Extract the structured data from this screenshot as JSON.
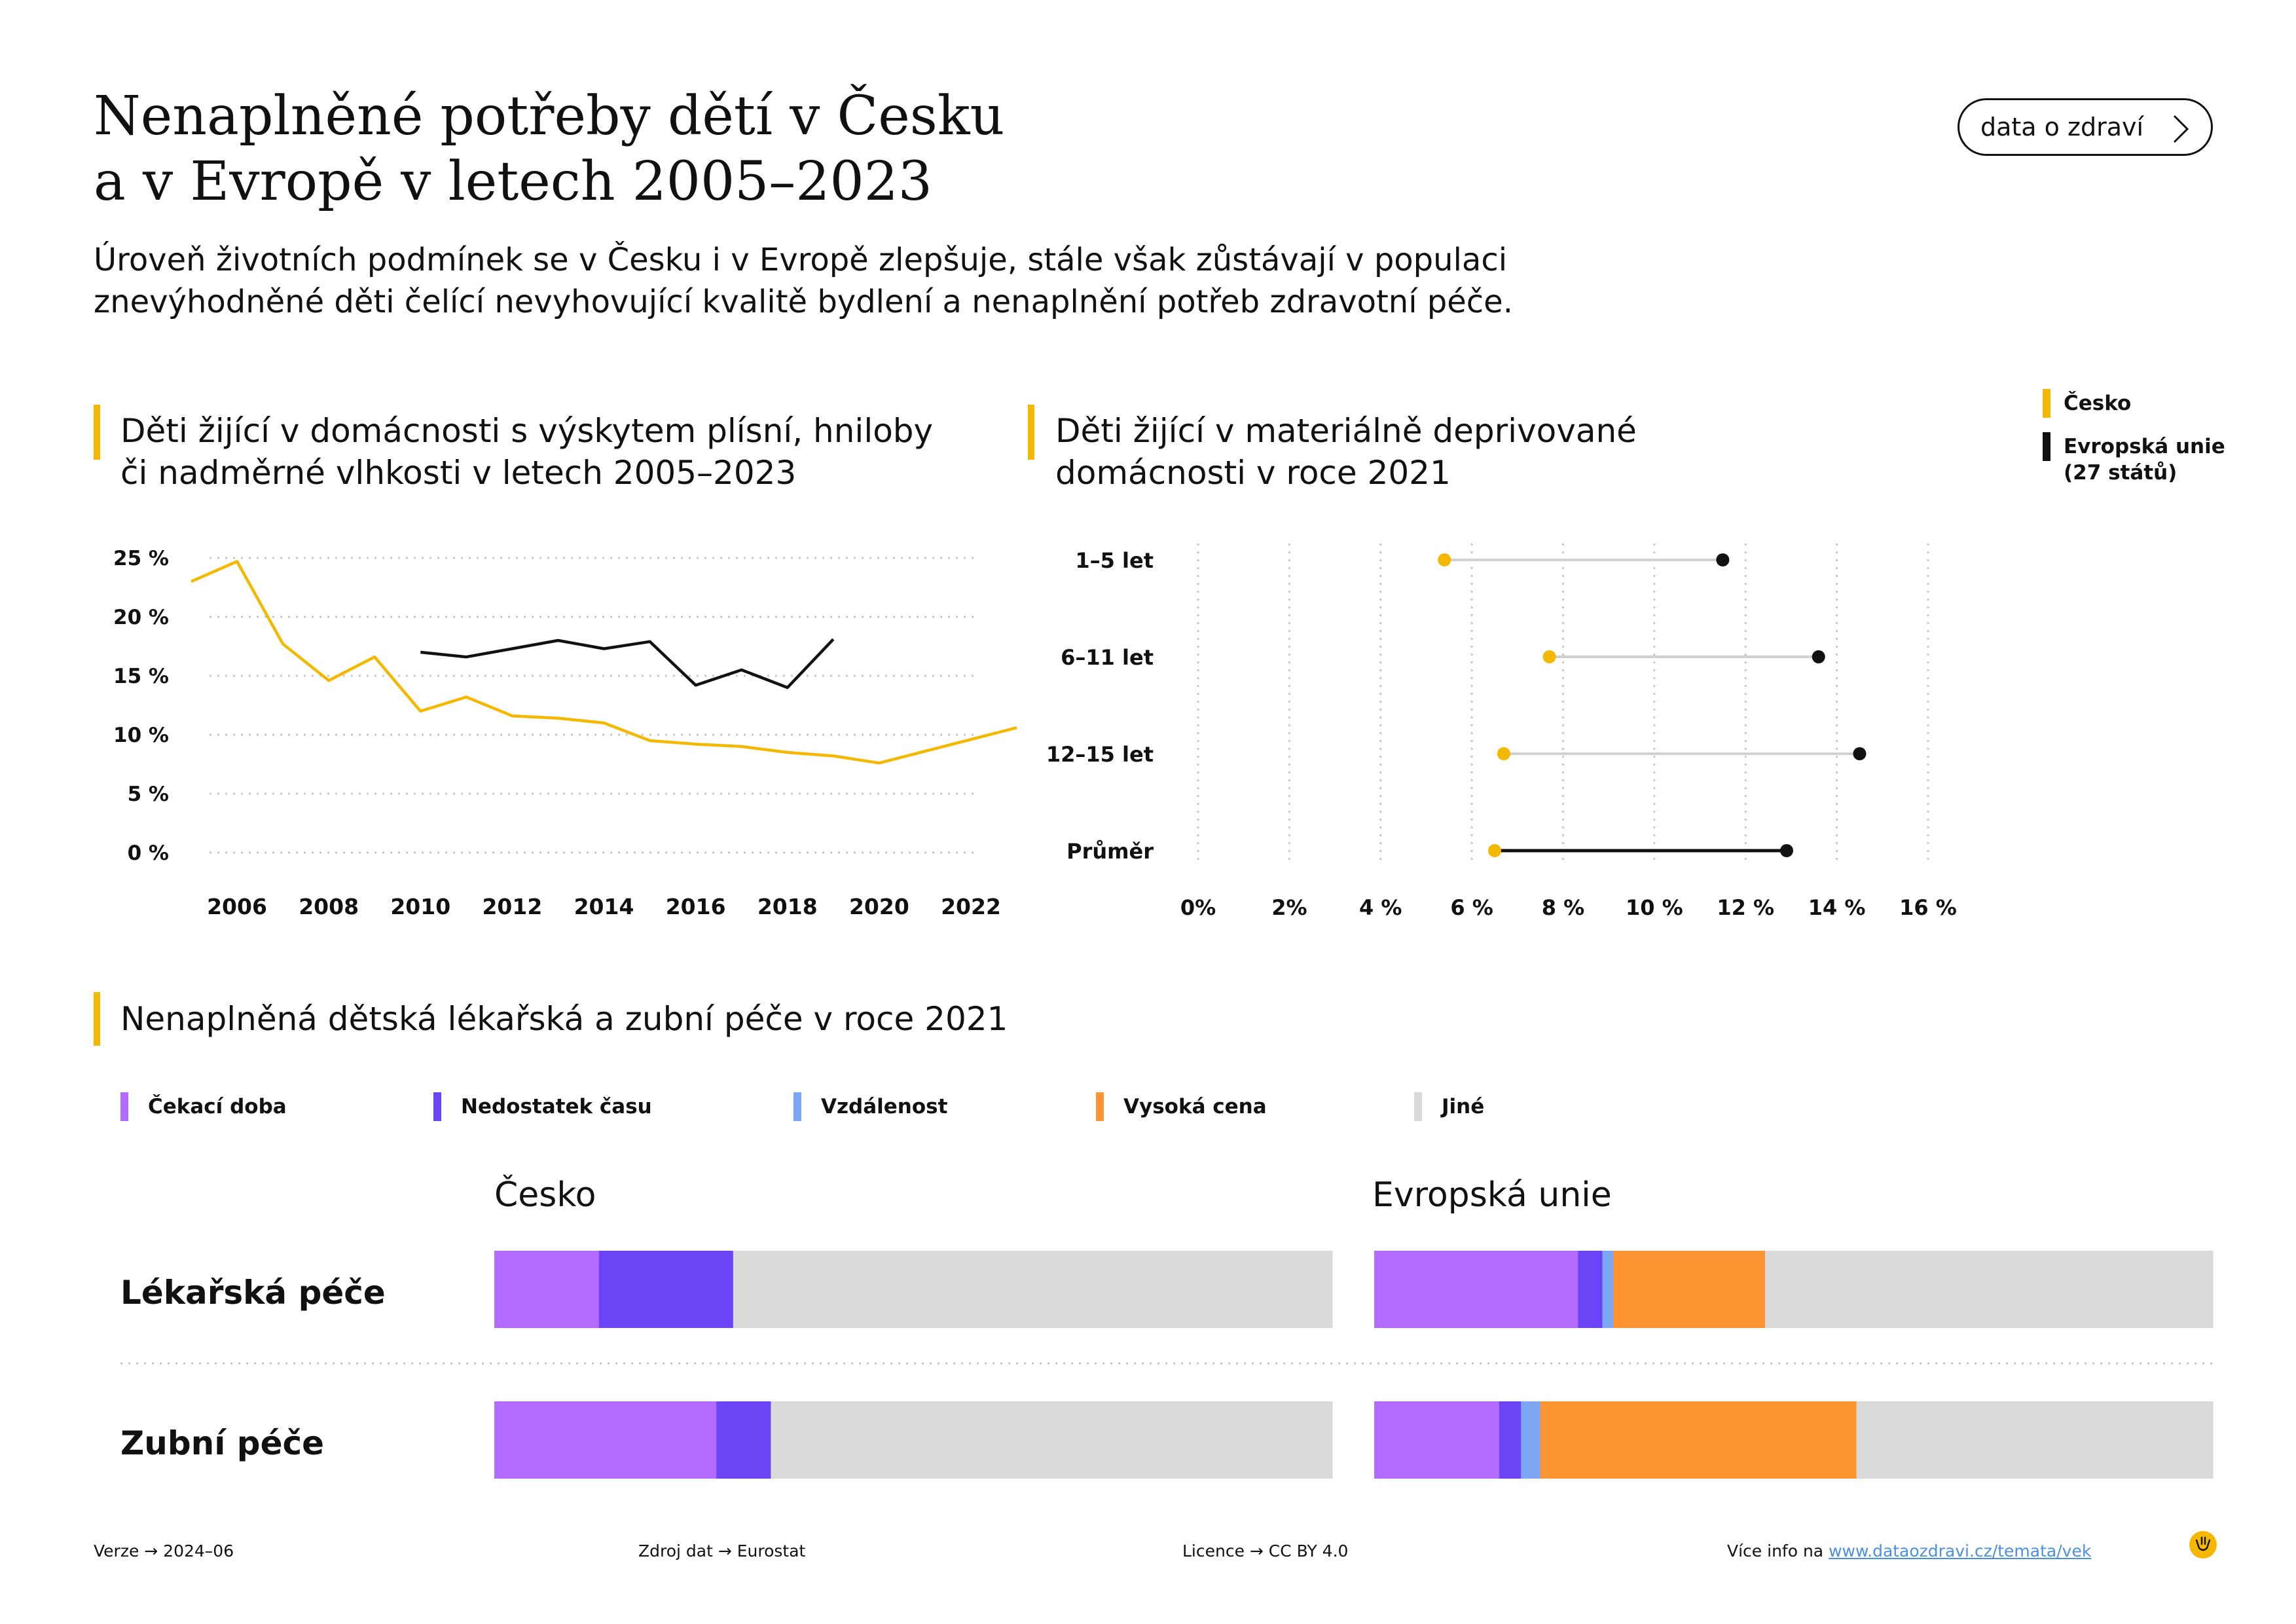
{
  "header": {
    "title_line1": "Nenaplněné potřeby dětí v Česku",
    "title_line2": "a v Evropě v letech 2005–2023",
    "subtitle_line1": "Úroveň životních podmínek se v Česku i v Evropě zlepšuje, stále však zůstávají v populaci",
    "subtitle_line2": "znevýhodněné děti čelící nevyhovující kvalitě bydlení a nenaplnění potřeb zdravotní péče.",
    "brand_button": "data o zdraví"
  },
  "legend_top": {
    "cz": "Česko",
    "eu_line1": "Evropská unie",
    "eu_line2": "(27 států)"
  },
  "colors": {
    "cz": "#F5B800",
    "eu": "#111111",
    "wait": "#B36BFF",
    "time": "#6B45F5",
    "distance": "#7AA6F5",
    "cost": "#FF9433",
    "other": "#D9D9D9",
    "accent": "#F5B800"
  },
  "icons": {
    "brand_arrow": "chevron-right-icon",
    "logo": "smiley-logo-icon"
  },
  "chart_data": [
    {
      "type": "line",
      "title_line1": "Děti žijící v domácnosti s výskytem plísní, hniloby",
      "title_line2": "či nadměrné vlhkosti v letech 2005–2023",
      "ylim": [
        0,
        25
      ],
      "yticks": [
        0,
        5,
        10,
        15,
        20,
        25
      ],
      "ytick_labels": [
        "0 %",
        "5 %",
        "10 %",
        "15 %",
        "20 %",
        "25 %"
      ],
      "xlim": [
        2005.4,
        2022.1
      ],
      "xticks": [
        2006,
        2008,
        2010,
        2012,
        2014,
        2016,
        2018,
        2020,
        2022
      ],
      "xtick_labels": [
        "2006",
        "2008",
        "2010",
        "2012",
        "2014",
        "2016",
        "2018",
        "2020",
        "2022"
      ],
      "grid": true,
      "series": [
        {
          "name": "Česko",
          "color": "#F5B800",
          "x": [
            2005,
            2006,
            2007,
            2008,
            2009,
            2010,
            2011,
            2012,
            2013,
            2014,
            2015,
            2016,
            2017,
            2018,
            2019,
            2020,
            2021,
            2022,
            2023
          ],
          "y": [
            23.0,
            24.7,
            17.7,
            14.6,
            16.6,
            12.0,
            13.2,
            11.6,
            11.4,
            11.0,
            9.5,
            9.2,
            9.0,
            8.5,
            8.2,
            7.6,
            8.6,
            9.6,
            10.6
          ]
        },
        {
          "name": "Evropská unie (27 států)",
          "color": "#111111",
          "x": [
            2010,
            2011,
            2012,
            2013,
            2014,
            2015,
            2016,
            2017,
            2018,
            2019
          ],
          "y": [
            17.0,
            16.6,
            17.3,
            18.0,
            17.3,
            17.9,
            14.2,
            15.5,
            14.0,
            18.1
          ]
        }
      ]
    },
    {
      "type": "dumbbell",
      "title_line1": "Děti žijící v materiálně deprivované",
      "title_line2": "domácnosti v roce 2021",
      "xlim": [
        0,
        16
      ],
      "xticks": [
        0,
        2,
        4,
        6,
        8,
        10,
        12,
        14,
        16
      ],
      "xtick_labels": [
        "0%",
        "2%",
        "4 %",
        "6 %",
        "8 %",
        "10 %",
        "12 %",
        "14 %",
        "16 %"
      ],
      "grid": true,
      "categories": [
        "1–5 let",
        "6–11 let",
        "12–15 let",
        "Průměr"
      ],
      "series": [
        {
          "name": "Česko",
          "color": "#F5B800",
          "values": [
            5.4,
            7.7,
            6.7,
            6.5
          ]
        },
        {
          "name": "Evropská unie (27 států)",
          "color": "#111111",
          "values": [
            11.5,
            13.6,
            14.5,
            12.9
          ]
        }
      ]
    },
    {
      "type": "bar",
      "stacked": true,
      "orientation": "horizontal",
      "normalized_percent": true,
      "title": "Nenaplněná dětská lékařská a zubní péče v roce 2021",
      "legend": [
        "Čekací doba",
        "Nedostatek času",
        "Vzdálenost",
        "Vysoká cena",
        "Jiné"
      ],
      "legend_placement": "top",
      "categories": [
        "Lékařská péče",
        "Zubní péče"
      ],
      "groups": [
        {
          "name": "Česko",
          "series": [
            {
              "name": "Čekací doba",
              "values": [
                12.5,
                26.5
              ]
            },
            {
              "name": "Nedostatek času",
              "values": [
                16.0,
                6.5
              ]
            },
            {
              "name": "Vzdálenost",
              "values": [
                0,
                0
              ]
            },
            {
              "name": "Vysoká cena",
              "values": [
                0,
                0
              ]
            },
            {
              "name": "Jiné",
              "values": [
                71.5,
                67.0
              ]
            }
          ]
        },
        {
          "name": "Evropská unie",
          "series": [
            {
              "name": "Čekací doba",
              "values": [
                24.3,
                14.9
              ]
            },
            {
              "name": "Nedostatek času",
              "values": [
                2.9,
                2.6
              ]
            },
            {
              "name": "Vzdálenost",
              "values": [
                1.3,
                2.3
              ]
            },
            {
              "name": "Vysoká cena",
              "values": [
                18.1,
                37.7
              ]
            },
            {
              "name": "Jiné",
              "values": [
                53.4,
                42.5
              ]
            }
          ]
        }
      ]
    }
  ],
  "footer": {
    "version": "Verze → 2024–06",
    "source": "Zdroj dat → Eurostat",
    "license": "Licence → CC BY 4.0",
    "more_prefix": "Více info na ",
    "more_link": "www.dataozdravi.cz/temata/vek"
  }
}
